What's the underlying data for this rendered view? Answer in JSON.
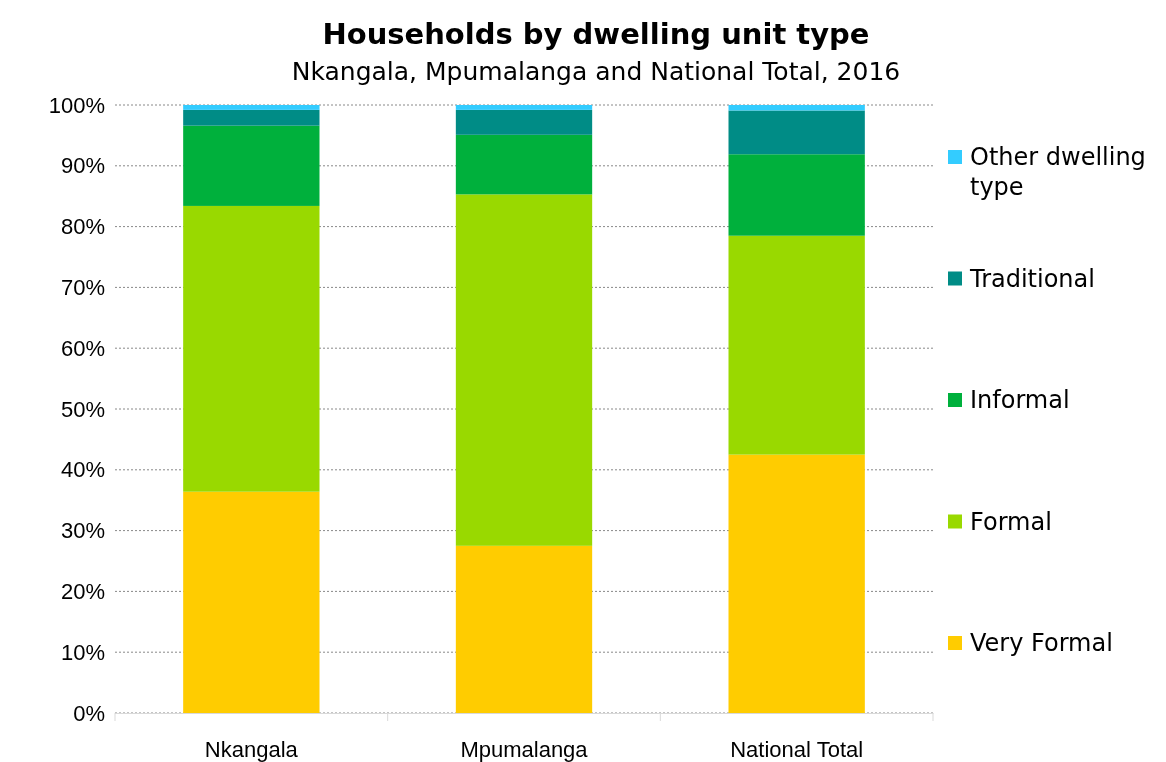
{
  "chart_data": {
    "type": "bar",
    "stacked": true,
    "title": "Households by dwelling unit type",
    "subtitle": "Nkangala, Mpumalanga and National Total, 2016",
    "categories": [
      "Nkangala",
      "Mpumalanga",
      "National Total"
    ],
    "series": [
      {
        "name": "Very Formal",
        "color": "#ffcc00",
        "values": [
          36.4,
          27.5,
          42.5
        ]
      },
      {
        "name": "Formal",
        "color": "#99d900",
        "values": [
          47.0,
          57.8,
          36.0
        ]
      },
      {
        "name": "Informal",
        "color": "#00b03c",
        "values": [
          13.2,
          9.8,
          13.4
        ]
      },
      {
        "name": "Traditional",
        "color": "#008c86",
        "values": [
          2.6,
          4.1,
          7.2
        ]
      },
      {
        "name": "Other dwelling type",
        "color": "#33ccff",
        "values": [
          0.8,
          0.8,
          0.9
        ]
      }
    ],
    "ylim": [
      0,
      100
    ],
    "yticks": [
      {
        "value": 0,
        "label": "0%"
      },
      {
        "value": 10,
        "label": "10%"
      },
      {
        "value": 20,
        "label": "20%"
      },
      {
        "value": 30,
        "label": "30%"
      },
      {
        "value": 40,
        "label": "40%"
      },
      {
        "value": 50,
        "label": "50%"
      },
      {
        "value": 60,
        "label": "60%"
      },
      {
        "value": 70,
        "label": "70%"
      },
      {
        "value": 80,
        "label": "80%"
      },
      {
        "value": 90,
        "label": "90%"
      },
      {
        "value": 100,
        "label": "100%"
      }
    ],
    "grid": "y",
    "legend": "right"
  }
}
